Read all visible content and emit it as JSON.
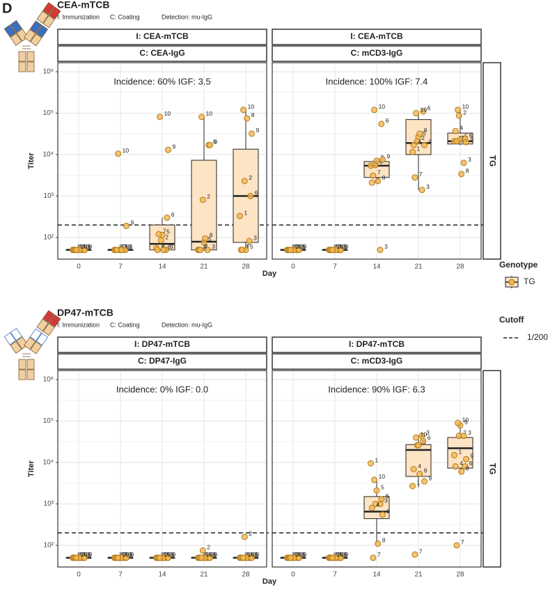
{
  "figure": {
    "panel_letter": "D",
    "groups": [
      {
        "title": "CEA-mTCB",
        "notes": [
          "I: Immunization",
          "C: Coating",
          "Detection: mu-IgG"
        ]
      },
      {
        "title": "DP47-mTCB",
        "notes": [
          "I: Immunization",
          "C: Coating",
          "Detection: mu-IgG"
        ]
      }
    ],
    "legend": {
      "genotype_title": "Genotype",
      "genotype": "TG",
      "cutoff_title": "Cutoff",
      "cutoff_label": "1/200"
    }
  },
  "chart_data": [
    {
      "type": "box",
      "strips": [
        "I: CEA-mTCB",
        "C: CEA-IgG"
      ],
      "annotation": "Incidence: 60% IGF: 3.5",
      "y_label": "Titer",
      "x_label": "Day",
      "categories": [
        "0",
        "7",
        "14",
        "21",
        "28"
      ],
      "point_ids": [
        "1",
        "2",
        "3",
        "4",
        "5",
        "6",
        "7",
        "8",
        "9",
        "10"
      ],
      "points": [
        [
          50,
          50,
          50,
          50,
          50,
          50,
          50,
          50,
          50,
          50
        ],
        [
          50,
          50,
          50,
          50,
          50,
          50,
          50,
          50,
          190,
          10500
        ],
        [
          55,
          85,
          50,
          50,
          115,
          300,
          120,
          50,
          13000,
          81000
        ],
        [
          50,
          810,
          50,
          50,
          76,
          17000,
          50,
          95,
          17000,
          81000
        ],
        [
          330,
          2300,
          82,
          50,
          50,
          1000,
          50,
          75000,
          32000,
          120000
        ]
      ],
      "boxes": [
        {
          "low": 50,
          "q1": 50,
          "median": 50,
          "q3": 50,
          "high": 50
        },
        {
          "low": 50,
          "q1": 50,
          "median": 50,
          "q3": 50,
          "high": 50
        },
        {
          "low": 50,
          "q1": 50,
          "median": 70,
          "q3": 200,
          "high": 300
        },
        {
          "low": 50,
          "q1": 50,
          "median": 79,
          "q3": 7300,
          "high": 81000
        },
        {
          "low": 50,
          "q1": 76,
          "median": 1000,
          "q3": 13500,
          "high": 120000
        }
      ],
      "log_y": true,
      "ylim": [
        30,
        1650000
      ],
      "yticks": [
        {
          "value": 100,
          "label": "10²"
        },
        {
          "value": 1000,
          "label": "10³"
        },
        {
          "value": 10000,
          "label": "10⁴"
        },
        {
          "value": 100000,
          "label": "10⁵"
        },
        {
          "value": 1000000,
          "label": "10⁶"
        }
      ],
      "cutoff": 200,
      "grid": true,
      "box_color": "#fde4c4",
      "point_color": "#f4b851"
    },
    {
      "type": "box",
      "strips": [
        "I: CEA-mTCB",
        "C: mCD3-IgG"
      ],
      "annotation": "Incidence: 100% IGF: 7.4",
      "row_strip": "TG",
      "categories": [
        "0",
        "7",
        "14",
        "21",
        "28"
      ],
      "point_ids": [
        "1",
        "2",
        "3",
        "4",
        "5",
        "6",
        "7",
        "8",
        "9",
        "10"
      ],
      "points": [
        [
          50,
          50,
          50,
          50,
          50,
          50,
          50,
          50,
          50,
          50
        ],
        [
          50,
          50,
          50,
          50,
          50,
          50,
          50,
          50,
          50,
          50
        ],
        [
          5400,
          5600,
          50,
          2100,
          7100,
          55000,
          3100,
          2300,
          7600,
          120000
        ],
        [
          11600,
          21000,
          1400,
          17000,
          27000,
          110000,
          2800,
          32000,
          17000,
          100000
        ],
        [
          21000,
          87000,
          6300,
          37000,
          23000,
          24000,
          21000,
          3400,
          20000,
          120000
        ]
      ],
      "boxes": [
        {
          "low": 50,
          "q1": 50,
          "median": 50,
          "q3": 50,
          "high": 50
        },
        {
          "low": 50,
          "q1": 50,
          "median": 50,
          "q3": 50,
          "high": 50
        },
        {
          "low": 2100,
          "q1": 2800,
          "median": 5400,
          "q3": 6800,
          "high": 7600
        },
        {
          "low": 1400,
          "q1": 10000,
          "median": 19000,
          "q3": 70000,
          "high": 110000
        },
        {
          "low": 17000,
          "q1": 18000,
          "median": 21000,
          "q3": 33000,
          "high": 120000
        }
      ],
      "log_y": true,
      "ylim": [
        30,
        1650000
      ],
      "yticks": [
        100,
        1000,
        10000,
        100000,
        1000000
      ],
      "cutoff": 200,
      "grid": true,
      "box_color": "#fde4c4",
      "point_color": "#f4b851"
    },
    {
      "type": "box",
      "strips": [
        "I: DP47-mTCB",
        "C: DP47-IgG"
      ],
      "annotation": "Incidence: 0% IGF: 0.0",
      "y_label": "Titer",
      "x_label": "Day",
      "categories": [
        "0",
        "7",
        "14",
        "21",
        "28"
      ],
      "point_ids": [
        "1",
        "2",
        "3",
        "4",
        "5",
        "6",
        "7",
        "8",
        "9",
        "10"
      ],
      "points": [
        [
          50,
          50,
          50,
          50,
          50,
          50,
          50,
          50,
          50,
          50
        ],
        [
          50,
          50,
          50,
          50,
          50,
          50,
          50,
          50,
          50,
          50
        ],
        [
          50,
          50,
          50,
          50,
          50,
          50,
          50,
          50,
          50,
          50
        ],
        [
          50,
          75,
          50,
          50,
          50,
          50,
          50,
          50,
          50,
          50
        ],
        [
          50,
          160,
          50,
          50,
          50,
          50,
          50,
          50,
          50,
          50
        ]
      ],
      "boxes": [
        {
          "low": 50,
          "q1": 50,
          "median": 50,
          "q3": 50,
          "high": 50
        },
        {
          "low": 50,
          "q1": 50,
          "median": 50,
          "q3": 50,
          "high": 50
        },
        {
          "low": 50,
          "q1": 50,
          "median": 50,
          "q3": 50,
          "high": 50
        },
        {
          "low": 50,
          "q1": 50,
          "median": 50,
          "q3": 50,
          "high": 50
        },
        {
          "low": 50,
          "q1": 50,
          "median": 50,
          "q3": 50,
          "high": 50
        }
      ],
      "log_y": true,
      "ylim": [
        30,
        1650000
      ],
      "yticks": [
        {
          "value": 100,
          "label": "10²"
        },
        {
          "value": 1000,
          "label": "10³"
        },
        {
          "value": 10000,
          "label": "10⁴"
        },
        {
          "value": 100000,
          "label": "10⁵"
        },
        {
          "value": 1000000,
          "label": "10⁶"
        }
      ],
      "cutoff": 200,
      "grid": true,
      "box_color": "#fde4c4",
      "point_color": "#f4b851"
    },
    {
      "type": "box",
      "strips": [
        "I: DP47-mTCB",
        "C: mCD3-IgG"
      ],
      "annotation": "Incidence: 90% IGF: 6.3",
      "row_strip": "TG",
      "categories": [
        "0",
        "7",
        "14",
        "21",
        "28"
      ],
      "point_ids": [
        "1",
        "2",
        "3",
        "4",
        "5",
        "6",
        "7",
        "8",
        "9",
        "10"
      ],
      "points": [
        [
          50,
          50,
          50,
          50,
          50,
          50,
          50,
          50,
          50,
          50
        ],
        [
          50,
          50,
          50,
          50,
          50,
          50,
          50,
          50,
          50,
          50
        ],
        [
          9500,
          1000,
          1000,
          800,
          2100,
          1300,
          50,
          110,
          550,
          3800
        ],
        [
          2700,
          26000,
          44000,
          6900,
          26000,
          33000,
          60,
          5300,
          3500,
          40000
        ],
        [
          15000,
          44000,
          44000,
          8000,
          79000,
          8000,
          100,
          6000,
          12000,
          90000
        ]
      ],
      "boxes": [
        {
          "low": 50,
          "q1": 50,
          "median": 50,
          "q3": 50,
          "high": 50
        },
        {
          "low": 50,
          "q1": 50,
          "median": 50,
          "q3": 50,
          "high": 50
        },
        {
          "low": 110,
          "q1": 440,
          "median": 650,
          "q3": 1500,
          "high": 3800
        },
        {
          "low": 2500,
          "q1": 4600,
          "median": 20000,
          "q3": 27000,
          "high": 44000
        },
        {
          "low": 5500,
          "q1": 7300,
          "median": 22000,
          "q3": 40000,
          "high": 90000
        }
      ],
      "log_y": true,
      "ylim": [
        30,
        1650000
      ],
      "yticks": [
        100,
        1000,
        10000,
        100000,
        1000000
      ],
      "cutoff": 200,
      "grid": true,
      "box_color": "#fde4c4",
      "point_color": "#f4b851"
    }
  ]
}
